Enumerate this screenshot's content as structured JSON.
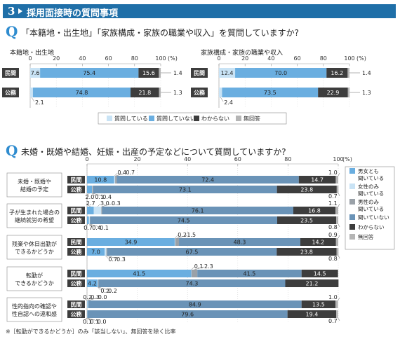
{
  "header": {
    "number": "3",
    "title": "採用面接時の質問事項"
  },
  "q1": {
    "icon": "Q",
    "text": "「本籍地・出生地」「家族構成・家族の職業や収入」を質問していますか?"
  },
  "q2": {
    "icon": "Q",
    "text": "未婚・既婚や結婚、妊娠・出産の予定などについて質問していますか?"
  },
  "footnote": "※［転勤ができるかどうか］のみ「該当しない」、無回答を除く比率",
  "colors": {
    "asked": "#c9e3f5",
    "not_asked": "#6aaee0",
    "unknown": "#3d3d3d",
    "no_answer": "#b5b5b5",
    "both": "#6aaee0",
    "female_only": "#c9e3f5",
    "male_only": "#9aa1a8",
    "nan": "#6a93b7"
  },
  "chart_data": [
    {
      "type": "bar",
      "orientation": "horizontal",
      "stacked": true,
      "title": "本籍地・出生地",
      "xlim": [
        0,
        100
      ],
      "x_ticks": [
        "0",
        "20",
        "40",
        "60",
        "80",
        "100",
        "(%)"
      ],
      "categories": [
        "民間",
        "公務"
      ],
      "series": [
        {
          "name": "質問している",
          "values": [
            7.6,
            2.1
          ]
        },
        {
          "name": "質問していない",
          "values": [
            75.4,
            74.8
          ]
        },
        {
          "name": "わからない",
          "values": [
            15.6,
            21.8
          ]
        },
        {
          "name": "無回答",
          "values": [
            1.4,
            1.3
          ]
        }
      ],
      "legend": "bottom"
    },
    {
      "type": "bar",
      "orientation": "horizontal",
      "stacked": true,
      "title": "家族構成・家族の職業や収入",
      "xlim": [
        0,
        100
      ],
      "x_ticks": [
        "0",
        "20",
        "40",
        "60",
        "80",
        "100",
        "(%)"
      ],
      "categories": [
        "民間",
        "公務"
      ],
      "series": [
        {
          "name": "質問している",
          "values": [
            12.4,
            2.4
          ]
        },
        {
          "name": "質問していない",
          "values": [
            70.0,
            73.5
          ]
        },
        {
          "name": "わからない",
          "values": [
            16.2,
            22.9
          ]
        },
        {
          "name": "無回答",
          "values": [
            1.4,
            1.3
          ]
        }
      ],
      "legend": "bottom"
    },
    {
      "type": "bar",
      "orientation": "horizontal",
      "stacked": true,
      "xlim": [
        0,
        100
      ],
      "x_ticks": [
        "0",
        "20",
        "40",
        "60",
        "80",
        "100",
        "(%)"
      ],
      "groups": [
        {
          "label": "未婚・既婚や結婚の予定",
          "rows": [
            {
              "category": "民間",
              "values": [
                10.8,
                0.4,
                0.7,
                72.4,
                14.7,
                1.0
              ]
            },
            {
              "category": "公務",
              "values": [
                2.0,
                0.1,
                0.4,
                73.1,
                23.8,
                0.7
              ]
            }
          ]
        },
        {
          "label": "子が生まれた場合の継続就労の希望",
          "rows": [
            {
              "category": "民間",
              "values": [
                2.7,
                3.0,
                0.3,
                76.1,
                16.8,
                1.1
              ]
            },
            {
              "category": "公務",
              "values": [
                0.7,
                0.4,
                0.1,
                74.5,
                23.5,
                0.8
              ]
            }
          ]
        },
        {
          "label": "残業や休日出勤ができるかどうか",
          "rows": [
            {
              "category": "民間",
              "values": [
                34.9,
                0.2,
                1.5,
                48.3,
                14.2,
                0.9
              ]
            },
            {
              "category": "公務",
              "values": [
                7.0,
                0.7,
                0.3,
                67.5,
                23.8,
                0.8
              ]
            }
          ]
        },
        {
          "label": "転勤ができるかどうか",
          "rows": [
            {
              "category": "民間",
              "values": [
                41.5,
                0.1,
                2.3,
                41.5,
                14.5,
                null
              ]
            },
            {
              "category": "公務",
              "values": [
                4.2,
                0.2,
                0.2,
                74.3,
                21.2,
                null
              ]
            }
          ]
        },
        {
          "label": "性的指向の確認や性自認への違和感",
          "rows": [
            {
              "category": "民間",
              "values": [
                0.2,
                0.3,
                0.0,
                84.9,
                13.5,
                1.0
              ]
            },
            {
              "category": "公務",
              "values": [
                0.1,
                0.1,
                0.0,
                79.6,
                19.4,
                0.7
              ]
            }
          ]
        }
      ],
      "series_names": [
        "男女とも聞いている",
        "女性のみ聞いている",
        "男性のみ聞いている",
        "聞いていない",
        "わからない",
        "無回答"
      ],
      "legend": "right"
    }
  ]
}
